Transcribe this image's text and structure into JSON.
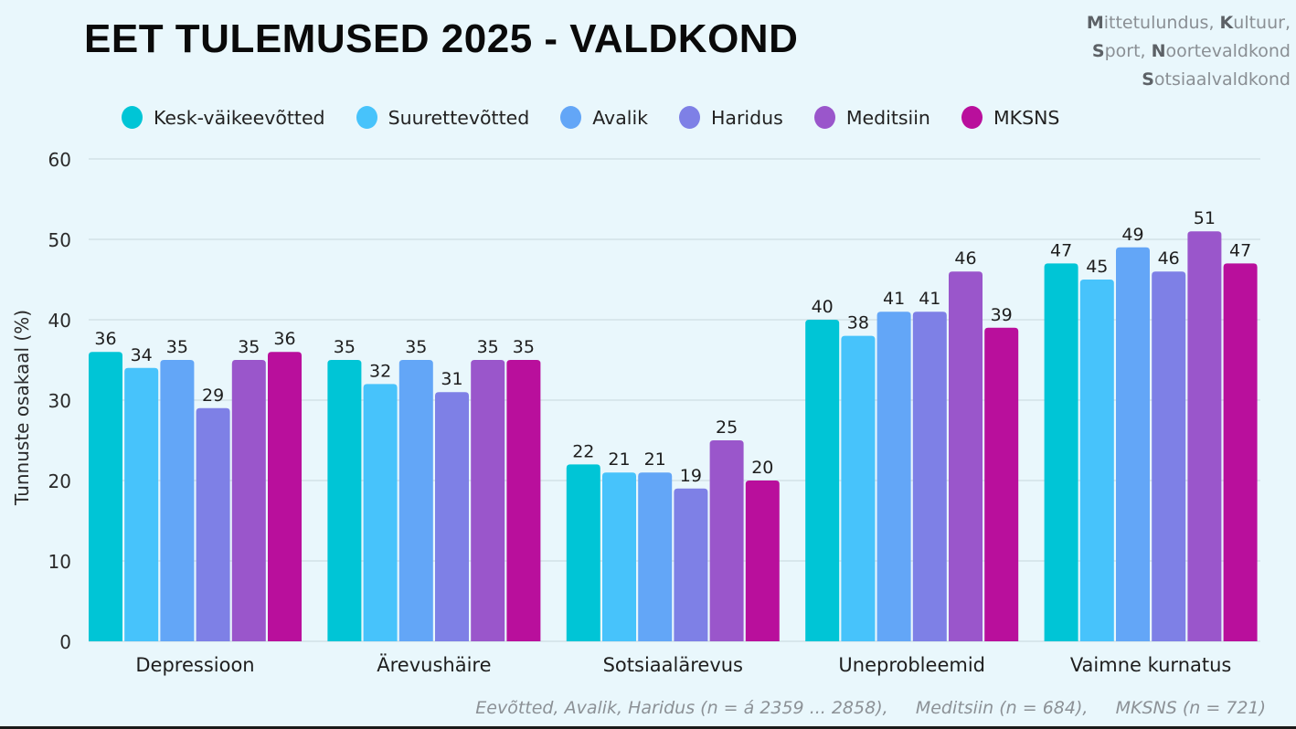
{
  "header": {
    "title": "EET TULEMUSED 2025 - VALDKOND",
    "subtitle_lines": [
      [
        {
          "b": "M"
        },
        {
          "t": "ittetulundus, "
        },
        {
          "b": "K"
        },
        {
          "t": "ultuur,"
        }
      ],
      [
        {
          "b": "S"
        },
        {
          "t": "port, "
        },
        {
          "b": "N"
        },
        {
          "t": "oortevaldkond"
        }
      ],
      [
        {
          "b": "S"
        },
        {
          "t": "otsiaalvaldkond"
        }
      ]
    ]
  },
  "footnote": "Eevõtted, Avalik, Haridus (n = á 2359 ... 2858),     Meditsiin (n = 684),     MKSNS (n = 721)",
  "chart_data": {
    "type": "bar",
    "title": "EET TULEMUSED 2025 - VALDKOND",
    "xlabel": "",
    "ylabel": "Tunnuste osakaal (%)",
    "ylim": [
      0,
      60
    ],
    "yticks": [
      0,
      10,
      20,
      30,
      40,
      50,
      60
    ],
    "grid": true,
    "legend_position": "top",
    "categories": [
      "Depressioon",
      "Ärevushäire",
      "Sotsiaalärevus",
      "Uneprobleemid",
      "Vaimne kurnatus"
    ],
    "series": [
      {
        "name": "Kesk-väikeevõtted",
        "color": "#00c5d6",
        "values": [
          36,
          35,
          22,
          40,
          47
        ]
      },
      {
        "name": "Suurettevõtted",
        "color": "#47c3fb",
        "values": [
          34,
          32,
          21,
          38,
          45
        ]
      },
      {
        "name": "Avalik",
        "color": "#63a6f7",
        "values": [
          35,
          35,
          21,
          41,
          49
        ]
      },
      {
        "name": "Haridus",
        "color": "#7e80e6",
        "values": [
          29,
          31,
          19,
          41,
          46
        ]
      },
      {
        "name": "Meditsiin",
        "color": "#9a56cb",
        "values": [
          35,
          35,
          25,
          46,
          51
        ]
      },
      {
        "name": "MKSNS",
        "color": "#b90f9c",
        "values": [
          36,
          35,
          20,
          39,
          47
        ]
      }
    ]
  }
}
